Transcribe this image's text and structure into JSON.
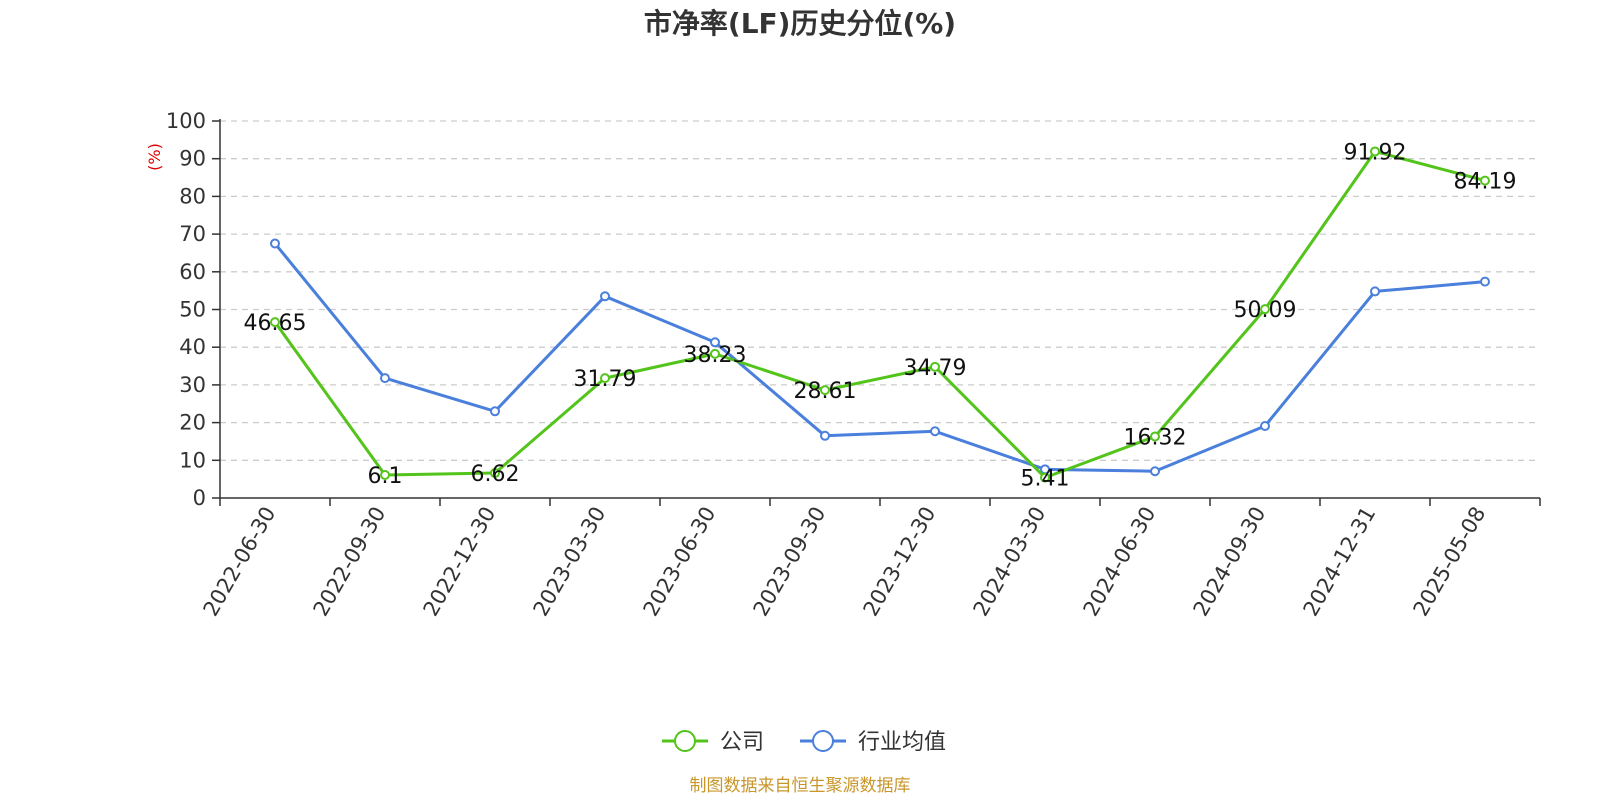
{
  "chart_data": {
    "type": "line",
    "title": "市净率(LF)历史分位(%)",
    "ylabel": "(%)",
    "ylim": [
      0,
      100
    ],
    "yticks": [
      0,
      10,
      20,
      30,
      40,
      50,
      60,
      70,
      80,
      90,
      100
    ],
    "grid": true,
    "legend_placement": "bottom-center",
    "categories": [
      "2022-06-30",
      "2022-09-30",
      "2022-12-30",
      "2023-03-30",
      "2023-06-30",
      "2023-09-30",
      "2023-12-30",
      "2024-03-30",
      "2024-06-30",
      "2024-09-30",
      "2024-12-31",
      "2025-05-08"
    ],
    "series": [
      {
        "name": "公司",
        "color": "#52c41a",
        "values": [
          46.65,
          6.1,
          6.62,
          31.79,
          38.23,
          28.61,
          34.79,
          5.41,
          16.32,
          50.09,
          91.92,
          84.19
        ],
        "labels": [
          "46.65",
          "6.1",
          "6.62",
          "31.79",
          "38.23",
          "28.61",
          "34.79",
          "5.41",
          "16.32",
          "50.09",
          "91.92",
          "84.19"
        ]
      },
      {
        "name": "行业均值",
        "color": "#4a7fdc",
        "values": [
          67.5,
          31.8,
          23.0,
          53.5,
          41.3,
          16.5,
          17.7,
          7.6,
          7.1,
          19.1,
          54.8,
          57.4
        ]
      }
    ],
    "source": "制图数据来自恒生聚源数据库"
  }
}
